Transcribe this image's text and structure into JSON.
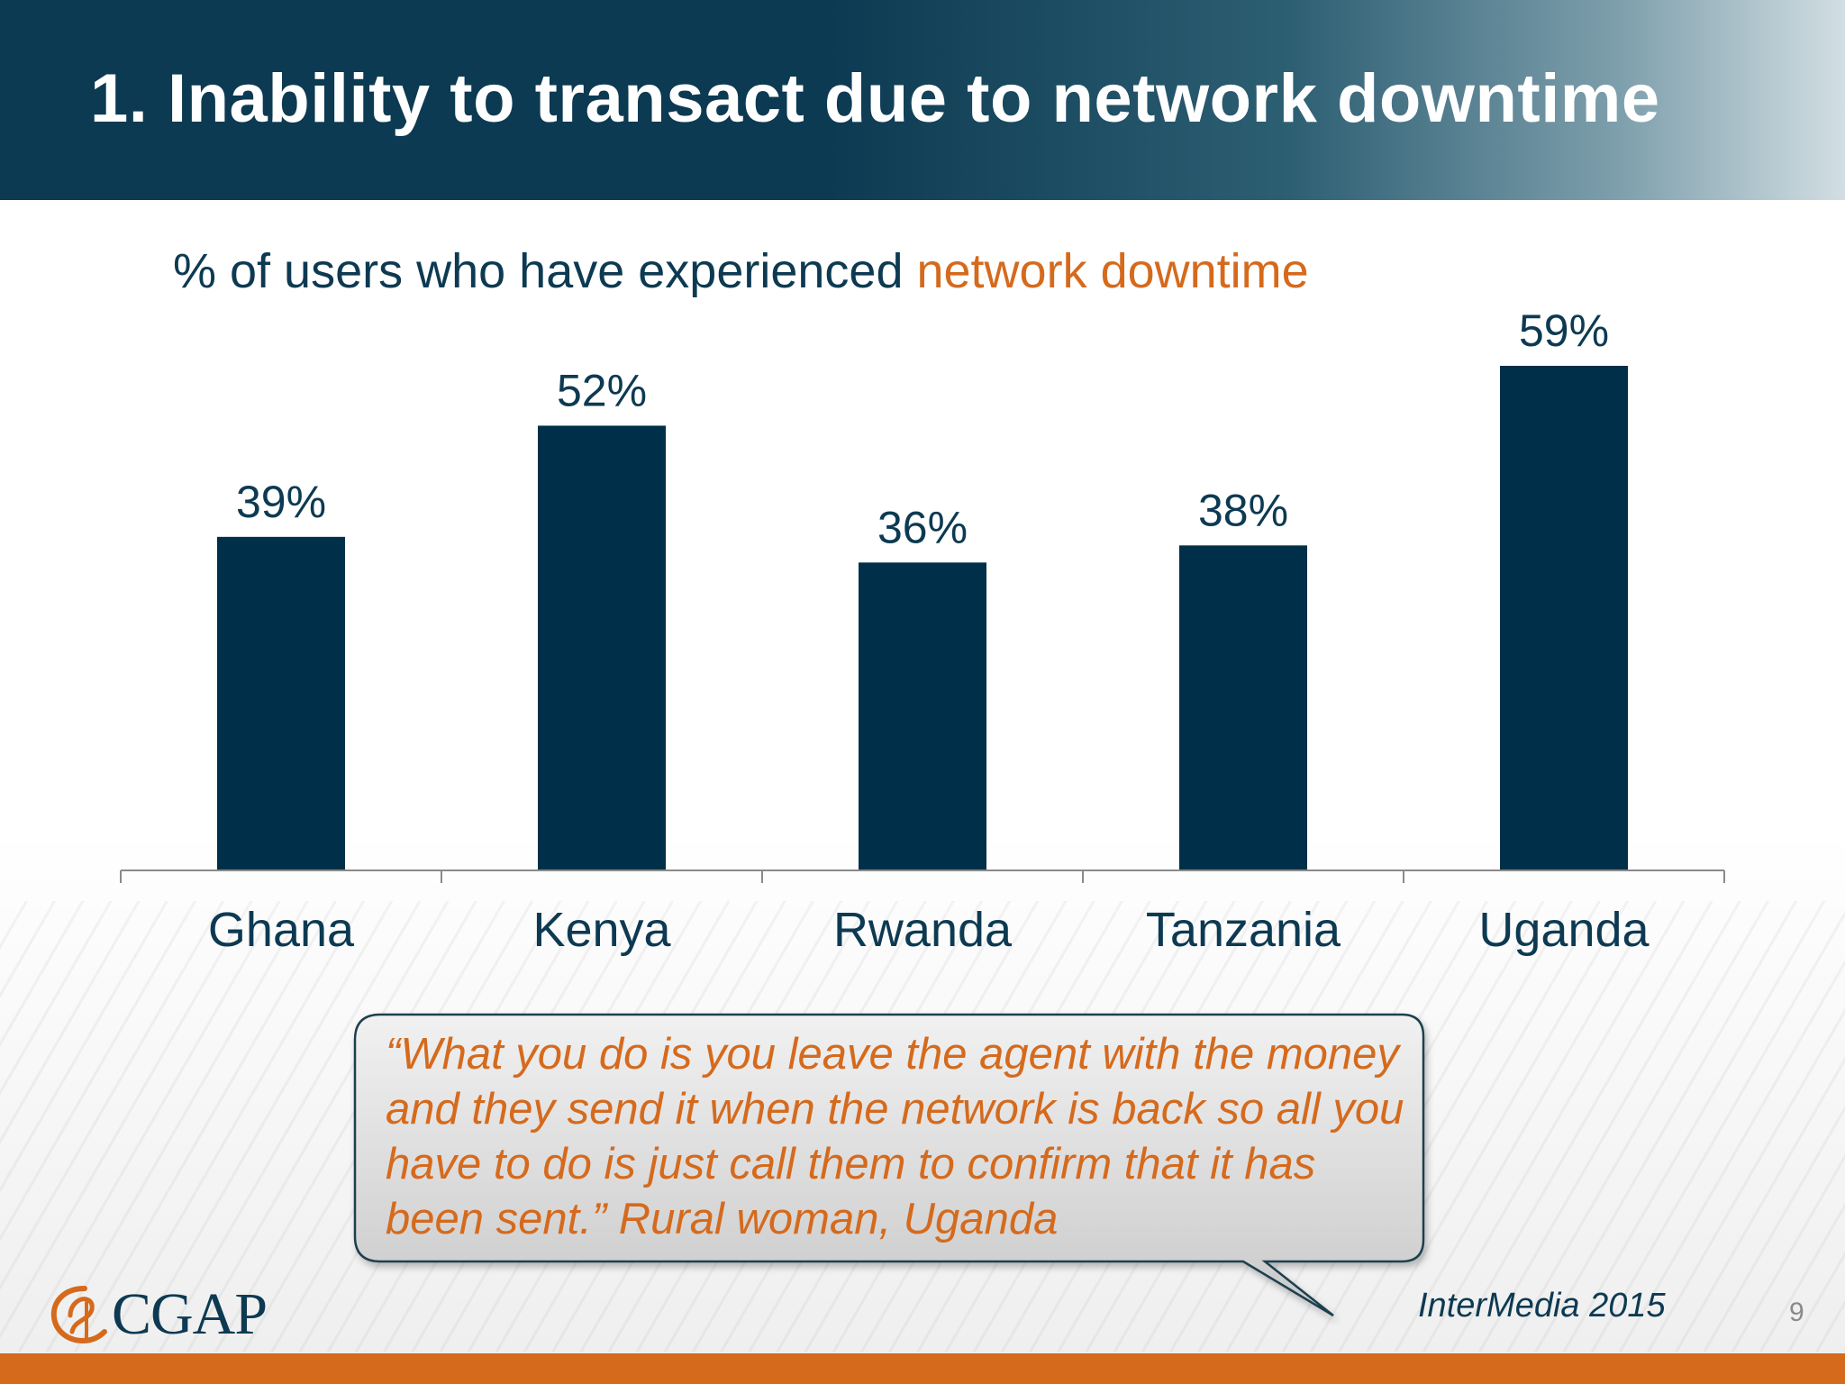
{
  "slide": {
    "title": "1. Inability to transact due to network downtime",
    "subtitle_prefix": "% of users who have experienced ",
    "subtitle_highlight": "network downtime",
    "quote": "“What you do is you leave the agent with the money and they send it when the network is back so all you have to do is just call them to confirm that it has been sent.” Rural woman, Uganda",
    "logo_text": "CGAP",
    "source": "InterMedia 2015",
    "page_number": "9"
  },
  "colors": {
    "header": "#0c3a52",
    "bar": "#003049",
    "text_dark": "#0d3a52",
    "accent": "#d56a1d"
  },
  "chart_data": {
    "type": "bar",
    "categories": [
      "Ghana",
      "Kenya",
      "Rwanda",
      "Tanzania",
      "Uganda"
    ],
    "values": [
      39,
      52,
      36,
      38,
      59
    ],
    "data_labels": [
      "39%",
      "52%",
      "36%",
      "38%",
      "59%"
    ],
    "title": "% of users who have experienced network downtime",
    "xlabel": "",
    "ylabel": "",
    "ylim": [
      0,
      59
    ],
    "grid": false,
    "legend": "none"
  }
}
